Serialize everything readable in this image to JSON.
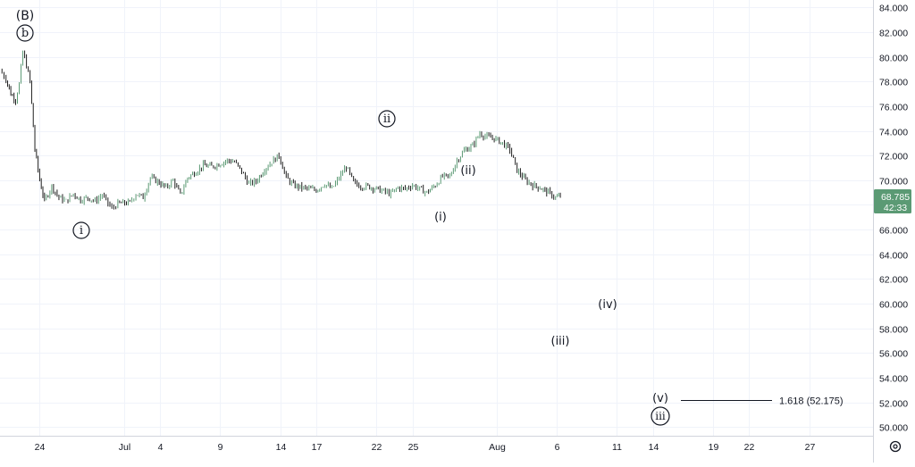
{
  "chart_data": {
    "type": "line",
    "price_scale": {
      "ticks": [
        "84.000",
        "82.000",
        "80.000",
        "78.000",
        "76.000",
        "74.000",
        "72.000",
        "70.000",
        "68.000",
        "66.000",
        "64.000",
        "62.000",
        "60.000",
        "58.000",
        "56.000",
        "54.000",
        "52.000",
        "50.000"
      ],
      "ylim": [
        49.3,
        84.6
      ]
    },
    "time_axis": {
      "ticks": [
        {
          "label": "24",
          "day": -7
        },
        {
          "label": "Jul",
          "day": 0
        },
        {
          "label": "4",
          "day": 3
        },
        {
          "label": "9",
          "day": 8
        },
        {
          "label": "14",
          "day": 13
        },
        {
          "label": "17",
          "day": 16
        },
        {
          "label": "22",
          "day": 21
        },
        {
          "label": "25",
          "day": 24
        },
        {
          "label": "Aug",
          "day": 31
        },
        {
          "label": "6",
          "day": 36
        },
        {
          "label": "11",
          "day": 41
        },
        {
          "label": "14",
          "day": 44
        },
        {
          "label": "19",
          "day": 49
        },
        {
          "label": "22",
          "day": 52
        },
        {
          "label": "27",
          "day": 57
        }
      ],
      "xlim": [
        -10.3,
        62.3
      ]
    },
    "series": [
      {
        "points": [
          [
            -10.3,
            78.9
          ],
          [
            -9.8,
            78.2
          ],
          [
            -9.4,
            77.0
          ],
          [
            -9.0,
            76.5
          ],
          [
            -8.7,
            77.8
          ],
          [
            -8.4,
            80.4
          ],
          [
            -8.1,
            79.3
          ],
          [
            -7.8,
            78.0
          ],
          [
            -7.4,
            72.5
          ],
          [
            -7.0,
            70.0
          ],
          [
            -6.6,
            68.3
          ],
          [
            -6.0,
            69.5
          ],
          [
            -5.4,
            68.6
          ],
          [
            -4.8,
            68.3
          ],
          [
            -4.2,
            68.9
          ],
          [
            -3.6,
            68.4
          ],
          [
            -3.0,
            68.6
          ],
          [
            -2.4,
            68.3
          ],
          [
            -1.8,
            68.8
          ],
          [
            -1.0,
            67.7
          ],
          [
            -0.5,
            68.1
          ],
          [
            0.5,
            68.2
          ],
          [
            1.0,
            68.9
          ],
          [
            1.6,
            68.6
          ],
          [
            2.2,
            70.2
          ],
          [
            2.8,
            69.9
          ],
          [
            3.5,
            69.4
          ],
          [
            4.1,
            70.0
          ],
          [
            4.7,
            68.8
          ],
          [
            5.3,
            70.2
          ],
          [
            6.0,
            70.7
          ],
          [
            6.6,
            71.2
          ],
          [
            7.3,
            71.1
          ],
          [
            7.9,
            71.3
          ],
          [
            8.6,
            71.6
          ],
          [
            9.2,
            71.5
          ],
          [
            9.8,
            70.7
          ],
          [
            10.4,
            69.7
          ],
          [
            11.0,
            69.9
          ],
          [
            11.7,
            70.9
          ],
          [
            12.3,
            71.5
          ],
          [
            12.9,
            72.0
          ],
          [
            13.5,
            70.2
          ],
          [
            14.1,
            69.6
          ],
          [
            14.8,
            69.4
          ],
          [
            15.4,
            69.3
          ],
          [
            16.0,
            69.2
          ],
          [
            16.7,
            69.7
          ],
          [
            17.3,
            69.3
          ],
          [
            17.9,
            70.2
          ],
          [
            18.5,
            71.1
          ],
          [
            19.1,
            69.8
          ],
          [
            19.7,
            69.5
          ],
          [
            20.3,
            69.5
          ],
          [
            21.0,
            69.3
          ],
          [
            21.6,
            69.1
          ],
          [
            22.2,
            68.9
          ],
          [
            22.8,
            69.4
          ],
          [
            23.4,
            69.3
          ],
          [
            24.0,
            69.6
          ],
          [
            24.6,
            69.3
          ],
          [
            25.2,
            69.0
          ],
          [
            25.9,
            69.6
          ],
          [
            26.5,
            70.3
          ],
          [
            27.1,
            70.3
          ],
          [
            27.7,
            71.6
          ],
          [
            28.3,
            72.4
          ],
          [
            29.0,
            72.8
          ],
          [
            29.6,
            73.8
          ],
          [
            30.2,
            73.5
          ],
          [
            30.8,
            73.4
          ],
          [
            31.5,
            73.0
          ],
          [
            32.1,
            72.5
          ],
          [
            32.7,
            70.8
          ],
          [
            33.4,
            70.0
          ],
          [
            34.0,
            69.6
          ],
          [
            34.6,
            69.4
          ],
          [
            35.3,
            69.0
          ],
          [
            35.9,
            68.6
          ],
          [
            36.3,
            68.7
          ]
        ]
      }
    ],
    "annotations": {
      "B_top": "(B)",
      "b_circle": "b",
      "i_circle": "i",
      "ii_circle": "ii",
      "ii_paren": "(ii)",
      "i_paren": "(i)",
      "iv_paren": "(iv)",
      "iii_paren": "(iii)",
      "v_paren": "(v)",
      "iii_circle": "iii",
      "fib_label": "1.618 (52.175)"
    },
    "fib_level": 52.175,
    "last_price": {
      "value": "68.785",
      "countdown": "42:33",
      "color": "#5b9a74"
    },
    "candle_colors": {
      "up": "#5b9a74",
      "down": "#1f1f1f"
    },
    "grid": true
  }
}
